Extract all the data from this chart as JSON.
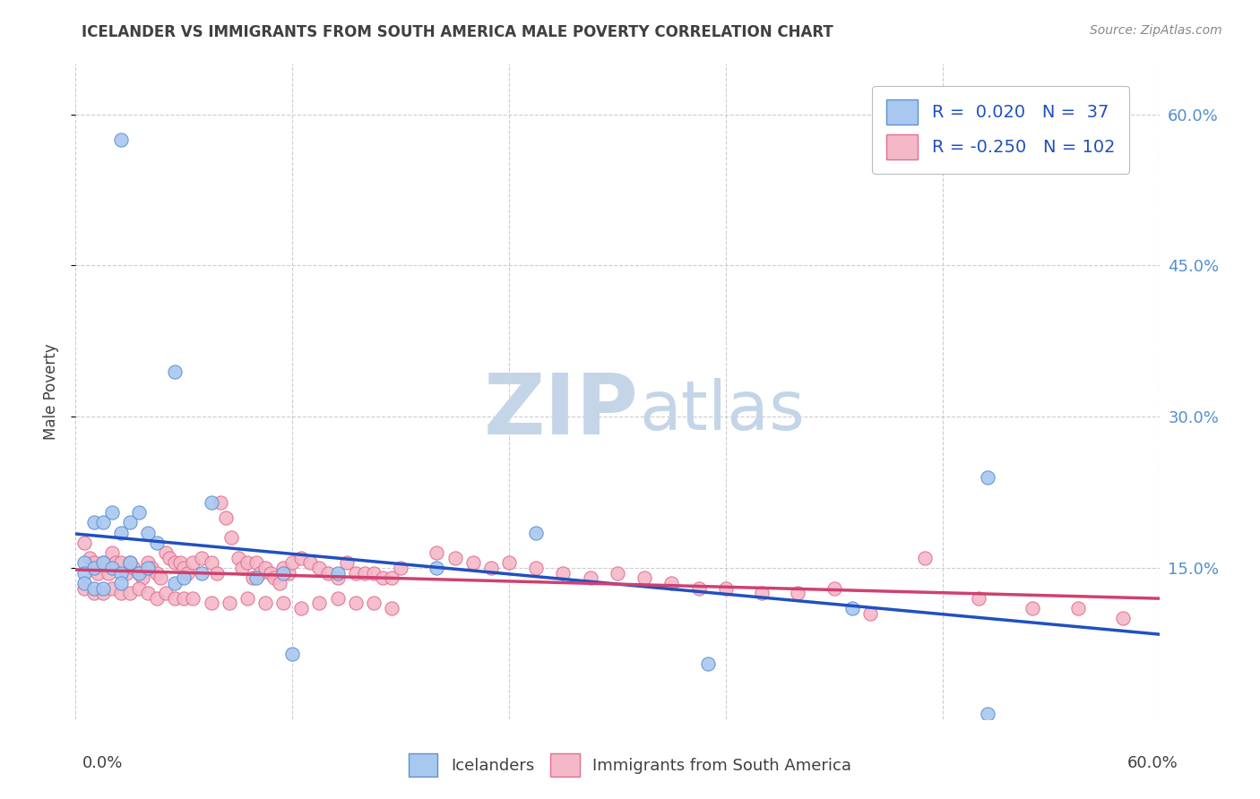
{
  "title": "ICELANDER VS IMMIGRANTS FROM SOUTH AMERICA MALE POVERTY CORRELATION CHART",
  "source": "Source: ZipAtlas.com",
  "ylabel": "Male Poverty",
  "xlim": [
    0.0,
    0.6
  ],
  "ylim": [
    0.0,
    0.65
  ],
  "yticks": [
    0.15,
    0.3,
    0.45,
    0.6
  ],
  "ytick_labels": [
    "15.0%",
    "30.0%",
    "45.0%",
    "60.0%"
  ],
  "xtick_labels_bottom": [
    "0.0%",
    "60.0%"
  ],
  "legend_icelander_R": "0.020",
  "legend_icelander_N": "37",
  "legend_immigrant_R": "-0.250",
  "legend_immigrant_N": "102",
  "blue_fill_color": "#A8C8F0",
  "pink_fill_color": "#F4B8C8",
  "blue_edge_color": "#6090D0",
  "pink_edge_color": "#E07090",
  "blue_line_color": "#2050C0",
  "pink_line_color": "#D04070",
  "watermark_zip_color": "#C5D5E8",
  "watermark_atlas_color": "#C5D5E8",
  "title_color": "#404040",
  "right_tick_color": "#5090D0",
  "grid_color": "#CCCCCC",
  "legend_text_color": "#2050C0",
  "bottom_legend_color": "#404040",
  "icelander_scatter": [
    [
      0.025,
      0.575
    ],
    [
      0.055,
      0.345
    ],
    [
      0.075,
      0.215
    ],
    [
      0.005,
      0.155
    ],
    [
      0.01,
      0.195
    ],
    [
      0.015,
      0.195
    ],
    [
      0.02,
      0.205
    ],
    [
      0.025,
      0.185
    ],
    [
      0.03,
      0.195
    ],
    [
      0.035,
      0.205
    ],
    [
      0.04,
      0.185
    ],
    [
      0.045,
      0.175
    ],
    [
      0.005,
      0.145
    ],
    [
      0.01,
      0.15
    ],
    [
      0.015,
      0.155
    ],
    [
      0.02,
      0.15
    ],
    [
      0.025,
      0.145
    ],
    [
      0.03,
      0.155
    ],
    [
      0.035,
      0.145
    ],
    [
      0.04,
      0.15
    ],
    [
      0.005,
      0.135
    ],
    [
      0.01,
      0.13
    ],
    [
      0.015,
      0.13
    ],
    [
      0.025,
      0.135
    ],
    [
      0.055,
      0.135
    ],
    [
      0.06,
      0.14
    ],
    [
      0.07,
      0.145
    ],
    [
      0.1,
      0.14
    ],
    [
      0.115,
      0.145
    ],
    [
      0.145,
      0.145
    ],
    [
      0.2,
      0.15
    ],
    [
      0.255,
      0.185
    ],
    [
      0.12,
      0.065
    ],
    [
      0.35,
      0.055
    ],
    [
      0.43,
      0.11
    ],
    [
      0.505,
      0.24
    ],
    [
      0.505,
      0.005
    ]
  ],
  "immigrant_scatter": [
    [
      0.005,
      0.175
    ],
    [
      0.008,
      0.16
    ],
    [
      0.01,
      0.155
    ],
    [
      0.012,
      0.145
    ],
    [
      0.015,
      0.155
    ],
    [
      0.018,
      0.145
    ],
    [
      0.02,
      0.165
    ],
    [
      0.022,
      0.155
    ],
    [
      0.025,
      0.155
    ],
    [
      0.028,
      0.145
    ],
    [
      0.03,
      0.155
    ],
    [
      0.032,
      0.15
    ],
    [
      0.035,
      0.145
    ],
    [
      0.037,
      0.14
    ],
    [
      0.04,
      0.155
    ],
    [
      0.042,
      0.15
    ],
    [
      0.045,
      0.145
    ],
    [
      0.047,
      0.14
    ],
    [
      0.05,
      0.165
    ],
    [
      0.052,
      0.16
    ],
    [
      0.055,
      0.155
    ],
    [
      0.058,
      0.155
    ],
    [
      0.06,
      0.15
    ],
    [
      0.062,
      0.145
    ],
    [
      0.005,
      0.13
    ],
    [
      0.01,
      0.125
    ],
    [
      0.015,
      0.125
    ],
    [
      0.02,
      0.13
    ],
    [
      0.025,
      0.125
    ],
    [
      0.03,
      0.125
    ],
    [
      0.035,
      0.13
    ],
    [
      0.04,
      0.125
    ],
    [
      0.045,
      0.12
    ],
    [
      0.05,
      0.125
    ],
    [
      0.055,
      0.12
    ],
    [
      0.06,
      0.12
    ],
    [
      0.065,
      0.155
    ],
    [
      0.07,
      0.16
    ],
    [
      0.075,
      0.155
    ],
    [
      0.078,
      0.145
    ],
    [
      0.08,
      0.215
    ],
    [
      0.083,
      0.2
    ],
    [
      0.086,
      0.18
    ],
    [
      0.09,
      0.16
    ],
    [
      0.092,
      0.15
    ],
    [
      0.095,
      0.155
    ],
    [
      0.098,
      0.14
    ],
    [
      0.1,
      0.155
    ],
    [
      0.102,
      0.145
    ],
    [
      0.105,
      0.15
    ],
    [
      0.108,
      0.145
    ],
    [
      0.11,
      0.14
    ],
    [
      0.113,
      0.135
    ],
    [
      0.115,
      0.15
    ],
    [
      0.118,
      0.145
    ],
    [
      0.12,
      0.155
    ],
    [
      0.125,
      0.16
    ],
    [
      0.13,
      0.155
    ],
    [
      0.135,
      0.15
    ],
    [
      0.14,
      0.145
    ],
    [
      0.145,
      0.14
    ],
    [
      0.15,
      0.155
    ],
    [
      0.155,
      0.145
    ],
    [
      0.16,
      0.145
    ],
    [
      0.165,
      0.145
    ],
    [
      0.17,
      0.14
    ],
    [
      0.175,
      0.14
    ],
    [
      0.18,
      0.15
    ],
    [
      0.065,
      0.12
    ],
    [
      0.075,
      0.115
    ],
    [
      0.085,
      0.115
    ],
    [
      0.095,
      0.12
    ],
    [
      0.105,
      0.115
    ],
    [
      0.115,
      0.115
    ],
    [
      0.125,
      0.11
    ],
    [
      0.135,
      0.115
    ],
    [
      0.145,
      0.12
    ],
    [
      0.155,
      0.115
    ],
    [
      0.165,
      0.115
    ],
    [
      0.175,
      0.11
    ],
    [
      0.2,
      0.165
    ],
    [
      0.21,
      0.16
    ],
    [
      0.22,
      0.155
    ],
    [
      0.23,
      0.15
    ],
    [
      0.24,
      0.155
    ],
    [
      0.255,
      0.15
    ],
    [
      0.27,
      0.145
    ],
    [
      0.285,
      0.14
    ],
    [
      0.3,
      0.145
    ],
    [
      0.315,
      0.14
    ],
    [
      0.33,
      0.135
    ],
    [
      0.345,
      0.13
    ],
    [
      0.36,
      0.13
    ],
    [
      0.38,
      0.125
    ],
    [
      0.4,
      0.125
    ],
    [
      0.42,
      0.13
    ],
    [
      0.44,
      0.105
    ],
    [
      0.47,
      0.16
    ],
    [
      0.5,
      0.12
    ],
    [
      0.53,
      0.11
    ],
    [
      0.555,
      0.11
    ],
    [
      0.58,
      0.1
    ]
  ]
}
